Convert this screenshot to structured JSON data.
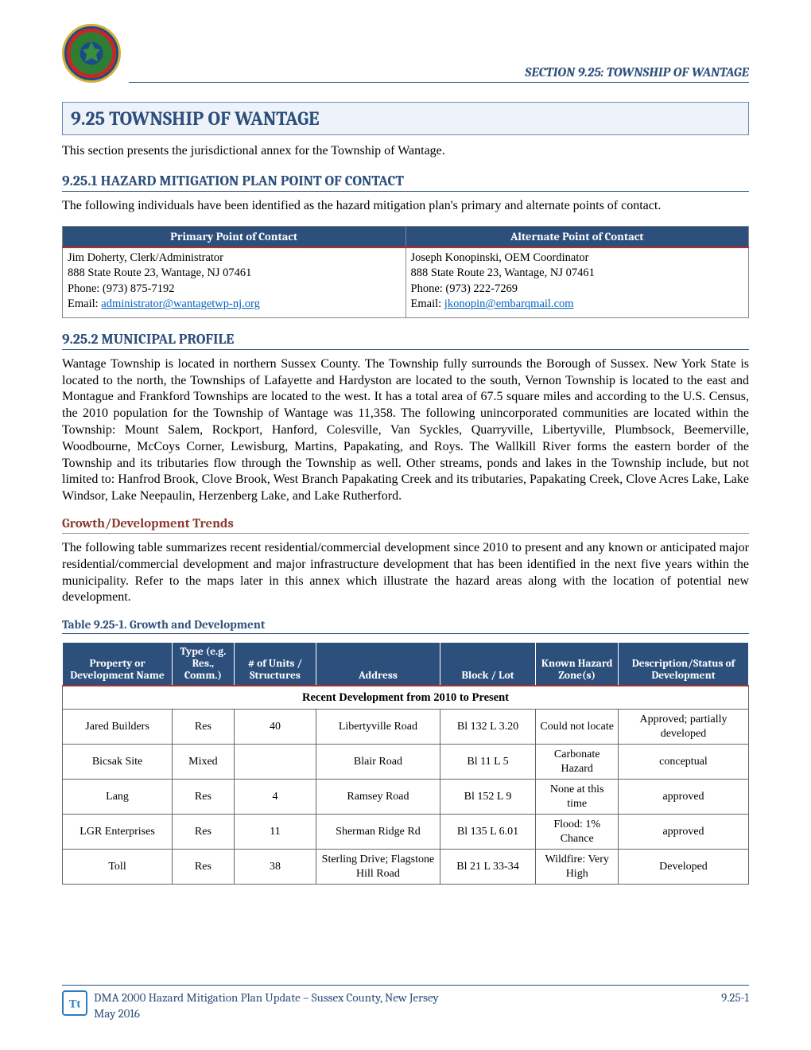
{
  "header": {
    "running_title": "SECTION 9.25: TOWNSHIP OF WANTAGE"
  },
  "title": "9.25  TOWNSHIP OF WANTAGE",
  "intro": "This section presents the jurisdictional annex for the Township of Wantage.",
  "section_contact": {
    "heading": "9.25.1 HAZARD MITIGATION PLAN POINT OF CONTACT",
    "lead": "The following individuals have been identified as the hazard mitigation plan's primary and alternate points of contact.",
    "primary_header": "Primary Point of Contact",
    "alternate_header": "Alternate Point of Contact",
    "primary": {
      "name_role": "Jim Doherty, Clerk/Administrator",
      "address": "888 State Route 23, Wantage, NJ  07461",
      "phone": "Phone: (973) 875-7192",
      "email_label": "Email: ",
      "email": "administrator@wantagetwp-nj.org"
    },
    "alternate": {
      "name_role": "Joseph Konopinski, OEM Coordinator",
      "address": "888 State Route 23, Wantage, NJ  07461",
      "phone": "Phone: (973) 222-7269",
      "email_label": "Email: ",
      "email": "jkonopin@embarqmail.com"
    }
  },
  "section_profile": {
    "heading": "9.25.2 MUNICIPAL PROFILE",
    "paragraph": "Wantage Township is located in northern Sussex County.  The Township fully surrounds the Borough of Sussex. New York State is located to the north, the Townships of Lafayette and Hardyston are located to the south, Vernon Township is located to the east and Montague and Frankford Townships are located to the west.  It has a total area of 67.5 square miles and according to the U.S. Census, the 2010 population for the Township of Wantage was 11,358.  The following unincorporated communities are located within the Township: Mount Salem, Rockport, Hanford, Colesville, Van Syckles, Quarryville, Libertyville, Plumbsock, Beemerville, Woodbourne, McCoys Corner, Lewisburg, Martins, Papakating, and Roys.  The Wallkill River forms the eastern border of the Township and its tributaries flow through the Township as well.  Other streams, ponds and lakes in the Township include, but not limited to: Hanfrod Brook, Clove Brook, West Branch Papakating Creek and its tributaries, Papakating Creek, Clove Acres Lake, Lake Windsor, Lake Neepaulin, Herzenberg Lake, and Lake Rutherford."
  },
  "growth": {
    "heading": "Growth/Development Trends",
    "paragraph": "The following table summarizes recent residential/commercial development since 2010 to present and any known or anticipated major residential/commercial development and major infrastructure development that has been identified in the next five years within the municipality.  Refer to the maps later in this annex which illustrate the hazard areas along with the location of potential new development.",
    "table_caption": "Table 9.25-1.  Growth and Development",
    "columns": [
      "Property or Development Name",
      "Type (e.g. Res., Comm.)",
      "# of Units / Structures",
      "Address",
      "Block / Lot",
      "Known Hazard Zone(s)",
      "Description/Status of Development"
    ],
    "subheader": "Recent Development from 2010 to Present",
    "rows": [
      {
        "name": "Jared Builders",
        "type": "Res",
        "units": "40",
        "address": "Libertyville Road",
        "block": "Bl 132 L 3.20",
        "hazard": "Could not locate",
        "status": "Approved; partially developed"
      },
      {
        "name": "Bicsak Site",
        "type": "Mixed",
        "units": "",
        "address": "Blair Road",
        "block": "Bl 11 L 5",
        "hazard": "Carbonate Hazard",
        "status": "conceptual"
      },
      {
        "name": "Lang",
        "type": "Res",
        "units": "4",
        "address": "Ramsey Road",
        "block": "Bl 152 L 9",
        "hazard": "None at this time",
        "status": "approved"
      },
      {
        "name": "LGR Enterprises",
        "type": "Res",
        "units": "11",
        "address": "Sherman Ridge Rd",
        "block": "Bl 135 L 6.01",
        "hazard": "Flood: 1% Chance",
        "status": "approved"
      },
      {
        "name": "Toll",
        "type": "Res",
        "units": "38",
        "address": "Sterling Drive; Flagstone Hill Road",
        "block": "Bl 21 L 33-34",
        "hazard": "Wildfire: Very High",
        "status": "Developed"
      }
    ]
  },
  "footer": {
    "line1": "DMA 2000 Hazard Mitigation Plan Update – Sussex County, New Jersey",
    "line2": "May 2016",
    "page_number": "9.25-1"
  },
  "colors": {
    "blue_header": "#2c4f7c",
    "red_accent": "#b03028",
    "maroon_heading": "#8a3a2e",
    "link": "#0563c1",
    "box_fill": "#eef3f9"
  }
}
